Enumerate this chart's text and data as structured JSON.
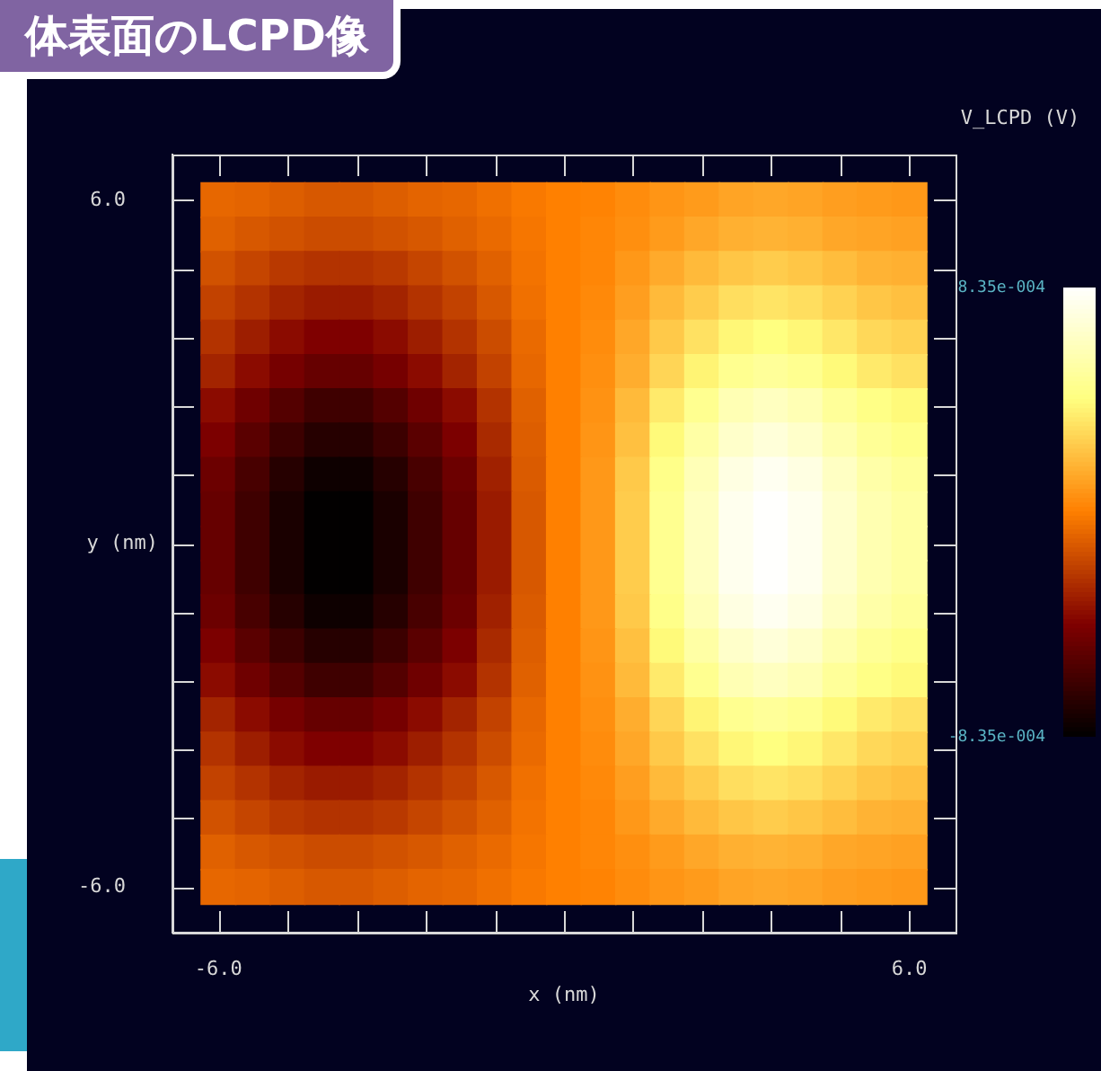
{
  "chart_data": {
    "type": "heatmap",
    "title": "体表面のLCPD像",
    "xlabel": "x (nm)",
    "ylabel": "y (nm)",
    "clabel": "V_LCPD (V)",
    "x": [
      -6.0,
      -5.4,
      -4.8,
      -4.2,
      -3.6,
      -3.0,
      -2.4,
      -1.8,
      -1.2,
      -0.6,
      0.0,
      0.6,
      1.2,
      1.8,
      2.4,
      3.0,
      3.6,
      4.2,
      4.8,
      5.4,
      6.0
    ],
    "y": [
      6.0,
      5.4,
      4.8,
      4.2,
      3.6,
      3.0,
      2.4,
      1.8,
      1.2,
      0.6,
      0.0,
      -0.6,
      -1.2,
      -1.8,
      -2.4,
      -3.0,
      -3.6,
      -4.2,
      -4.8,
      -5.4,
      -6.0
    ],
    "cells": [
      [
        -8e-05,
        -9e-05,
        -0.00011,
        -0.00013,
        -0.00013,
        -0.00011,
        -9e-05,
        -8e-05,
        -5e-05,
        -2e-05,
        0,
        1e-05,
        4e-05,
        7e-05,
        9e-05,
        0.00012,
        0.00013,
        0.00012,
        0.0001,
        9e-05,
        8e-05
      ],
      [
        -0.0001,
        -0.00013,
        -0.00015,
        -0.00017,
        -0.00017,
        -0.00015,
        -0.00013,
        -0.0001,
        -7e-05,
        -3e-05,
        0,
        2e-05,
        5e-05,
        9e-05,
        0.00013,
        0.00016,
        0.00017,
        0.00016,
        0.00013,
        0.00012,
        0.00011
      ],
      [
        -0.00015,
        -0.00019,
        -0.00023,
        -0.00025,
        -0.00025,
        -0.00023,
        -0.00019,
        -0.00015,
        -0.0001,
        -4e-05,
        0,
        2e-05,
        8e-05,
        0.00014,
        0.00019,
        0.00023,
        0.00025,
        0.00023,
        0.0002,
        0.00017,
        0.00016
      ],
      [
        -0.0002,
        -0.00025,
        -0.0003,
        -0.00033,
        -0.00033,
        -0.0003,
        -0.00025,
        -0.0002,
        -0.00013,
        -5e-05,
        0,
        3e-05,
        0.0001,
        0.00019,
        0.00025,
        0.00031,
        0.00033,
        0.00031,
        0.00027,
        0.00023,
        0.00021
      ],
      [
        -0.00025,
        -0.00032,
        -0.00038,
        -0.00042,
        -0.00042,
        -0.00038,
        -0.00032,
        -0.00025,
        -0.00017,
        -7e-05,
        0,
        4e-05,
        0.00013,
        0.00024,
        0.00032,
        0.00039,
        0.00042,
        0.00039,
        0.00034,
        0.00029,
        0.00027
      ],
      [
        -0.0003,
        -0.00038,
        -0.00045,
        -0.0005,
        -0.0005,
        -0.00045,
        -0.00038,
        -0.0003,
        -0.0002,
        -8e-05,
        0,
        5e-05,
        0.00015,
        0.00028,
        0.00038,
        0.00047,
        0.0005,
        0.00047,
        0.0004,
        0.00035,
        0.00032
      ],
      [
        -0.00038,
        -0.00047,
        -0.00056,
        -0.00063,
        -0.00063,
        -0.00056,
        -0.00047,
        -0.00038,
        -0.00025,
        -0.0001,
        0,
        6e-05,
        0.00019,
        0.00035,
        0.00047,
        0.00059,
        0.00063,
        0.00059,
        0.0005,
        0.00044,
        0.0004
      ],
      [
        -0.00043,
        -0.00054,
        -0.00064,
        -0.00071,
        -0.00071,
        -0.00064,
        -0.00054,
        -0.00043,
        -0.00028,
        -0.00011,
        0,
        7e-05,
        0.00021,
        0.0004,
        0.00054,
        0.00066,
        0.00071,
        0.00066,
        0.00057,
        0.00049,
        0.00045
      ],
      [
        -0.00048,
        -0.0006,
        -0.00071,
        -0.00079,
        -0.00079,
        -0.00071,
        -0.0006,
        -0.00048,
        -0.00031,
        -0.00012,
        0,
        8e-05,
        0.00024,
        0.00045,
        0.0006,
        0.00074,
        0.00079,
        0.00074,
        0.00064,
        0.00055,
        0.0005
      ],
      [
        -0.0005,
        -0.00063,
        -0.00075,
        -0.00083,
        -0.00083,
        -0.00075,
        -0.00063,
        -0.0005,
        -0.00033,
        -0.00013,
        0,
        8e-05,
        0.00025,
        0.00047,
        0.00063,
        0.00078,
        0.00083,
        0.00078,
        0.00067,
        0.00058,
        0.00053
      ],
      [
        -0.0005,
        -0.00063,
        -0.00075,
        -0.00083,
        -0.00083,
        -0.00075,
        -0.00063,
        -0.0005,
        -0.00033,
        -0.00013,
        0,
        8e-05,
        0.00025,
        0.00047,
        0.00063,
        0.00078,
        0.00083,
        0.00078,
        0.00067,
        0.00058,
        0.00053
      ],
      [
        -0.0005,
        -0.00063,
        -0.00075,
        -0.00083,
        -0.00083,
        -0.00075,
        -0.00063,
        -0.0005,
        -0.00033,
        -0.00013,
        0,
        8e-05,
        0.00025,
        0.00047,
        0.00063,
        0.00078,
        0.00083,
        0.00078,
        0.00067,
        0.00058,
        0.00053
      ],
      [
        -0.00048,
        -0.0006,
        -0.00071,
        -0.00079,
        -0.00079,
        -0.00071,
        -0.0006,
        -0.00048,
        -0.00031,
        -0.00012,
        0,
        8e-05,
        0.00024,
        0.00045,
        0.0006,
        0.00074,
        0.00079,
        0.00074,
        0.00064,
        0.00055,
        0.0005
      ],
      [
        -0.00043,
        -0.00054,
        -0.00064,
        -0.00071,
        -0.00071,
        -0.00064,
        -0.00054,
        -0.00043,
        -0.00028,
        -0.00011,
        0,
        7e-05,
        0.00021,
        0.0004,
        0.00054,
        0.00066,
        0.00071,
        0.00066,
        0.00057,
        0.00049,
        0.00045
      ],
      [
        -0.00038,
        -0.00047,
        -0.00056,
        -0.00063,
        -0.00063,
        -0.00056,
        -0.00047,
        -0.00038,
        -0.00025,
        -0.0001,
        0,
        6e-05,
        0.00019,
        0.00035,
        0.00047,
        0.00059,
        0.00063,
        0.00059,
        0.0005,
        0.00044,
        0.0004
      ],
      [
        -0.0003,
        -0.00038,
        -0.00045,
        -0.0005,
        -0.0005,
        -0.00045,
        -0.00038,
        -0.0003,
        -0.0002,
        -8e-05,
        0,
        5e-05,
        0.00015,
        0.00028,
        0.00038,
        0.00047,
        0.0005,
        0.00047,
        0.0004,
        0.00035,
        0.00032
      ],
      [
        -0.00025,
        -0.00032,
        -0.00038,
        -0.00042,
        -0.00042,
        -0.00038,
        -0.00032,
        -0.00025,
        -0.00017,
        -7e-05,
        0,
        4e-05,
        0.00013,
        0.00024,
        0.00032,
        0.00039,
        0.00042,
        0.00039,
        0.00034,
        0.00029,
        0.00027
      ],
      [
        -0.0002,
        -0.00025,
        -0.0003,
        -0.00033,
        -0.00033,
        -0.0003,
        -0.00025,
        -0.0002,
        -0.00013,
        -5e-05,
        0,
        3e-05,
        0.0001,
        0.00019,
        0.00025,
        0.00031,
        0.00033,
        0.00031,
        0.00027,
        0.00023,
        0.00021
      ],
      [
        -0.00015,
        -0.00019,
        -0.00023,
        -0.00025,
        -0.00025,
        -0.00023,
        -0.00019,
        -0.00015,
        -0.0001,
        -4e-05,
        0,
        2e-05,
        8e-05,
        0.00014,
        0.00019,
        0.00023,
        0.00025,
        0.00023,
        0.0002,
        0.00017,
        0.00016
      ],
      [
        -0.0001,
        -0.00013,
        -0.00015,
        -0.00017,
        -0.00017,
        -0.00015,
        -0.00013,
        -0.0001,
        -7e-05,
        -3e-05,
        0,
        2e-05,
        5e-05,
        9e-05,
        0.00013,
        0.00016,
        0.00017,
        0.00016,
        0.00013,
        0.00012,
        0.00011
      ],
      [
        -8e-05,
        -9e-05,
        -0.00011,
        -0.00013,
        -0.00013,
        -0.00011,
        -9e-05,
        -8e-05,
        -5e-05,
        -2e-05,
        0,
        1e-05,
        4e-05,
        7e-05,
        9e-05,
        0.00012,
        0.00013,
        0.00012,
        0.0001,
        9e-05,
        8e-05
      ]
    ],
    "clim": [
      -0.000835,
      0.000835
    ],
    "cticks": [
      {
        "value": 0.000835,
        "label": "8.35e-004"
      },
      {
        "value": -0.000835,
        "label": "-8.35e-004"
      }
    ],
    "xlim": [
      -6.8,
      6.8
    ],
    "ylim": [
      -6.8,
      6.8
    ],
    "xticks": [
      {
        "value": -6,
        "label": "-6.0"
      },
      {
        "value": -4.8,
        "label": null
      },
      {
        "value": -3.6,
        "label": null
      },
      {
        "value": -2.4,
        "label": null
      },
      {
        "value": -1.2,
        "label": null
      },
      {
        "value": 0,
        "label": null
      },
      {
        "value": 1.2,
        "label": null
      },
      {
        "value": 2.4,
        "label": null
      },
      {
        "value": 3.6,
        "label": null
      },
      {
        "value": 4.8,
        "label": null
      },
      {
        "value": 6,
        "label": "6.0"
      }
    ],
    "yticks": [
      {
        "value": -6,
        "label": "-6.0"
      },
      {
        "value": -4.8,
        "label": null
      },
      {
        "value": -3.6,
        "label": null
      },
      {
        "value": -2.4,
        "label": null
      },
      {
        "value": -1.2,
        "label": null
      },
      {
        "value": 0,
        "label": null
      },
      {
        "value": 1.2,
        "label": null
      },
      {
        "value": 2.4,
        "label": null
      },
      {
        "value": 3.6,
        "label": null
      },
      {
        "value": 4.8,
        "label": null
      },
      {
        "value": 6,
        "label": "6.0"
      }
    ]
  }
}
